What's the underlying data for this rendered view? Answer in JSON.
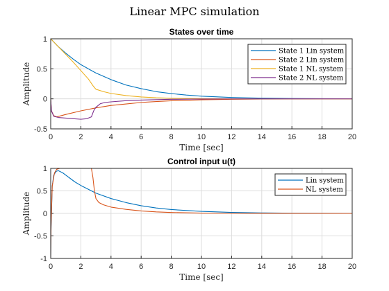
{
  "figure": {
    "suptitle": "Linear MPC simulation"
  },
  "chart_data": [
    {
      "type": "line",
      "title": "States over time",
      "xlabel": "Time [sec]",
      "ylabel": "Amplitude",
      "xlim": [
        0,
        20
      ],
      "ylim": [
        -0.5,
        1
      ],
      "xticks": [
        "0",
        "2",
        "4",
        "6",
        "8",
        "10",
        "12",
        "14",
        "16",
        "18",
        "20"
      ],
      "yticks": [
        "-0.5",
        "0",
        "0.5",
        "1"
      ],
      "grid": true,
      "legend_position": "top-right",
      "series": [
        {
          "name": "State 1 Lin system",
          "color": "#0072BD",
          "x": [
            0,
            0.5,
            1,
            1.5,
            2,
            3,
            4,
            5,
            6,
            7,
            8,
            9,
            10,
            12,
            14,
            16,
            18,
            20
          ],
          "y": [
            1,
            0.87,
            0.76,
            0.66,
            0.57,
            0.43,
            0.32,
            0.23,
            0.17,
            0.12,
            0.088,
            0.063,
            0.045,
            0.023,
            0.012,
            0.006,
            0.003,
            0.001
          ]
        },
        {
          "name": "State 2 Lin system",
          "color": "#D95319",
          "x": [
            0,
            0.05,
            0.2,
            0.4,
            1,
            2,
            3,
            4,
            5,
            6,
            7,
            8,
            10,
            12,
            14,
            16,
            20
          ],
          "y": [
            0,
            -0.2,
            -0.28,
            -0.3,
            -0.26,
            -0.2,
            -0.15,
            -0.11,
            -0.085,
            -0.06,
            -0.045,
            -0.032,
            -0.016,
            -0.008,
            -0.004,
            -0.002,
            0
          ]
        },
        {
          "name": "State 1 NL system",
          "color": "#EDB120",
          "x": [
            0,
            0.5,
            1,
            1.5,
            2,
            2.5,
            2.8,
            3,
            3.5,
            4,
            5,
            6,
            7,
            8,
            10,
            12,
            14,
            20
          ],
          "y": [
            1,
            0.87,
            0.74,
            0.61,
            0.47,
            0.33,
            0.22,
            0.16,
            0.12,
            0.09,
            0.055,
            0.032,
            0.018,
            0.01,
            0.004,
            0.002,
            0.001,
            0
          ]
        },
        {
          "name": "State 2 NL system",
          "color": "#7E2F8E",
          "x": [
            0,
            0.05,
            0.2,
            0.5,
            1,
            1.5,
            2,
            2.4,
            2.7,
            2.85,
            3,
            3.3,
            3.6,
            4,
            5,
            6,
            8,
            10,
            12,
            20
          ],
          "y": [
            0,
            -0.2,
            -0.29,
            -0.31,
            -0.32,
            -0.33,
            -0.34,
            -0.33,
            -0.3,
            -0.2,
            -0.14,
            -0.08,
            -0.06,
            -0.05,
            -0.03,
            -0.02,
            -0.008,
            -0.003,
            -0.001,
            0
          ]
        }
      ]
    },
    {
      "type": "line",
      "title": "Control input u(t)",
      "xlabel": "Time [sec]",
      "ylabel": "Amplitude",
      "xlim": [
        0,
        20
      ],
      "ylim": [
        -1,
        1
      ],
      "xticks": [
        "0",
        "2",
        "4",
        "6",
        "8",
        "10",
        "12",
        "14",
        "16",
        "18",
        "20"
      ],
      "yticks": [
        "-1",
        "-0.5",
        "0",
        "0.5",
        "1"
      ],
      "grid": true,
      "legend_position": "top-right",
      "series": [
        {
          "name": "Lin system",
          "color": "#0072BD",
          "x": [
            0,
            0.02,
            0.1,
            0.2,
            0.35,
            0.5,
            0.8,
            1.2,
            1.6,
            2,
            3,
            4,
            5,
            6,
            7,
            8,
            10,
            12,
            14,
            16,
            20
          ],
          "y": [
            -1,
            -0.4,
            0.6,
            0.85,
            0.93,
            0.95,
            0.9,
            0.8,
            0.7,
            0.62,
            0.45,
            0.33,
            0.24,
            0.17,
            0.12,
            0.085,
            0.045,
            0.022,
            0.011,
            0.005,
            0.001
          ]
        },
        {
          "name": "NL system",
          "color": "#D95319",
          "x": [
            0,
            0.02,
            0.1,
            0.25,
            0.4,
            0.6,
            2.7,
            2.8,
            2.9,
            3,
            3.2,
            3.5,
            4,
            5,
            6,
            7,
            8,
            10,
            12,
            20
          ],
          "y": [
            -1,
            -0.3,
            0.6,
            0.9,
            0.98,
            1,
            1,
            0.8,
            0.5,
            0.33,
            0.24,
            0.19,
            0.14,
            0.09,
            0.055,
            0.033,
            0.02,
            0.007,
            0.002,
            0
          ]
        }
      ]
    }
  ]
}
